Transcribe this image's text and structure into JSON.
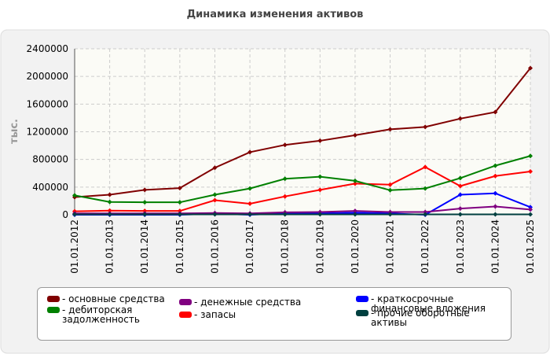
{
  "chart_data": {
    "type": "line",
    "title": "Динамика изменения активов",
    "y_label": "тыс.",
    "categories": [
      "01.01.2012",
      "01.01.2013",
      "01.01.2014",
      "01.01.2015",
      "01.01.2016",
      "01.01.2017",
      "01.01.2018",
      "01.01.2019",
      "01.01.2020",
      "01.01.2021",
      "01.01.2022",
      "01.01.2023",
      "01.01.2024",
      "01.01.2025"
    ],
    "series": [
      {
        "name": "- основные средства",
        "color": "#800000",
        "values": [
          255000,
          290000,
          360000,
          385000,
          680000,
          905000,
          1010000,
          1070000,
          1150000,
          1235000,
          1270000,
          1390000,
          1485000,
          2120000
        ]
      },
      {
        "name": "- запасы",
        "color": "#ff0000",
        "values": [
          50000,
          60000,
          55000,
          55000,
          210000,
          160000,
          265000,
          360000,
          450000,
          435000,
          690000,
          415000,
          560000,
          625000
        ]
      },
      {
        "name": "- дебиторская задолженность",
        "color": "#008000",
        "values": [
          280000,
          185000,
          180000,
          180000,
          290000,
          380000,
          520000,
          550000,
          490000,
          355000,
          380000,
          530000,
          710000,
          850000
        ]
      },
      {
        "name": "- краткосрочные финансовые вложения",
        "color": "#0000ff",
        "values": [
          0,
          0,
          0,
          0,
          15000,
          0,
          20000,
          20000,
          30000,
          20000,
          0,
          290000,
          310000,
          110000
        ]
      },
      {
        "name": "- денежные средства",
        "color": "#800080",
        "values": [
          20000,
          20000,
          20000,
          20000,
          25000,
          20000,
          35000,
          40000,
          55000,
          40000,
          40000,
          90000,
          120000,
          75000
        ]
      },
      {
        "name": "- прочие оборотные активы",
        "color": "#004040",
        "values": [
          5000,
          5000,
          5000,
          5000,
          5000,
          5000,
          5000,
          5000,
          5000,
          5000,
          5000,
          5000,
          5000,
          5000
        ]
      }
    ],
    "ylim": [
      0,
      2400000
    ],
    "yticks": [
      0,
      400000,
      800000,
      1200000,
      1600000,
      2000000,
      2400000
    ],
    "grid": true
  }
}
